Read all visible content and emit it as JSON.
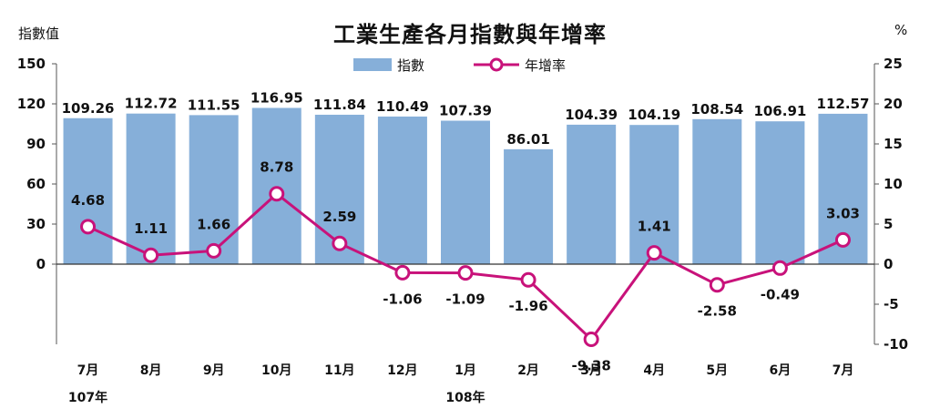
{
  "chart_data": {
    "type": "bar",
    "title": "工業生產各月指數與年增率",
    "ylabel_left": "指數值",
    "ylabel_right": "%",
    "categories": [
      "7月",
      "8月",
      "9月",
      "10月",
      "11月",
      "12月",
      "1月",
      "2月",
      "3月",
      "4月",
      "5月",
      "6月",
      "7月"
    ],
    "year_labels": [
      {
        "text": "107年",
        "category_index": 0
      },
      {
        "text": "108年",
        "category_index": 6
      }
    ],
    "series": [
      {
        "name": "指數",
        "type": "bar",
        "axis": "left",
        "color": "#86afd9",
        "values": [
          109.26,
          112.72,
          111.55,
          116.95,
          111.84,
          110.49,
          107.39,
          86.01,
          104.39,
          104.19,
          108.54,
          106.91,
          112.57
        ],
        "labels": [
          "109.26",
          "112.72",
          "111.55",
          "116.95",
          "111.84",
          "110.49",
          "107.39",
          "86.01",
          "104.39",
          "104.19",
          "108.54",
          "106.91",
          "112.57"
        ]
      },
      {
        "name": "年增率",
        "type": "line",
        "axis": "right",
        "color": "#c8127a",
        "values": [
          4.68,
          1.11,
          1.66,
          8.78,
          2.59,
          -1.06,
          -1.09,
          -1.96,
          -9.38,
          1.41,
          -2.58,
          -0.49,
          3.03
        ],
        "labels": [
          "4.68",
          "1.11",
          "1.66",
          "8.78",
          "2.59",
          "-1.06",
          "-1.09",
          "-1.96",
          "-9.38",
          "1.41",
          "-2.58",
          "-0.49",
          "3.03"
        ]
      }
    ],
    "y_left": {
      "min": -60,
      "max": 150,
      "ticks": [
        0,
        30,
        60,
        90,
        120,
        150
      ],
      "tick_labels": [
        "0",
        "30",
        "60",
        "90",
        "120",
        "150"
      ]
    },
    "y_right": {
      "min": -10,
      "max": 25,
      "ticks": [
        -10,
        -5,
        0,
        5,
        10,
        15,
        20,
        25
      ],
      "tick_labels": [
        "-10",
        "-5",
        "0",
        "5",
        "10",
        "15",
        "20",
        "25"
      ]
    },
    "legend_placement": "top-center",
    "grid": false
  }
}
